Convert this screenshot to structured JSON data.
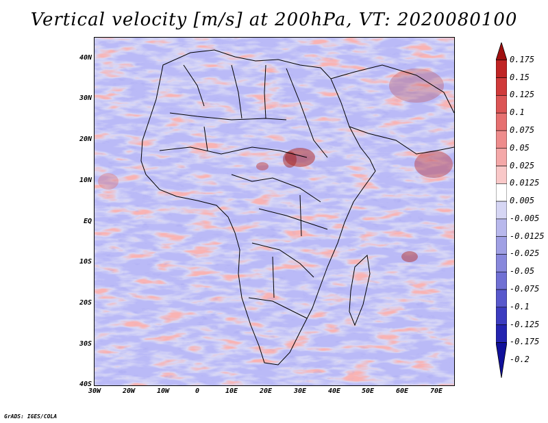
{
  "title": "Vertical velocity [m/s] at 200hPa, VT: 2020080100",
  "footer": "GrADS: IGES/COLA",
  "map": {
    "lat_labels": [
      "40N",
      "30N",
      "20N",
      "10N",
      "EQ",
      "10S",
      "20S",
      "30S",
      "40S"
    ],
    "lon_labels": [
      "30W",
      "20W",
      "10W",
      "0",
      "10E",
      "20E",
      "30E",
      "40E",
      "50E",
      "60E",
      "70E"
    ],
    "lat_range": [
      -40,
      45
    ],
    "lon_range": [
      -30,
      75
    ]
  },
  "colorbar": {
    "levels": [
      "0.175",
      "0.15",
      "0.125",
      "0.1",
      "0.075",
      "0.05",
      "0.025",
      "0.0125",
      "0.005",
      "-0.005",
      "-0.0125",
      "-0.025",
      "-0.05",
      "-0.075",
      "-0.1",
      "-0.125",
      "-0.175",
      "-0.2"
    ],
    "colors": [
      "#a01010",
      "#c02424",
      "#d03a3a",
      "#dc5555",
      "#e67070",
      "#ee8c8c",
      "#f4a8a8",
      "#f9c8c8",
      "#ffffff",
      "#d6d6f4",
      "#b8b8ec",
      "#a0a0e4",
      "#8888dc",
      "#7070d4",
      "#5858cc",
      "#3c3cc0",
      "#2424b0",
      "#10109a"
    ]
  }
}
